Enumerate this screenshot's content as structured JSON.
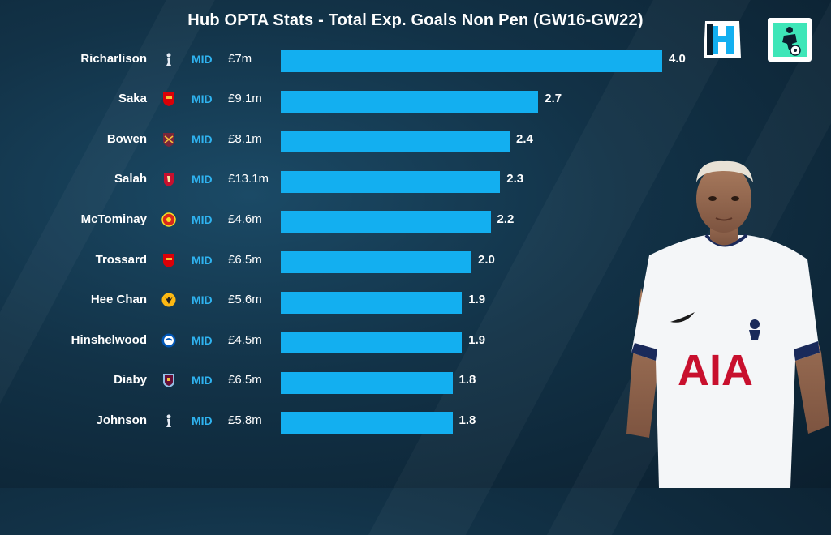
{
  "chart_data": {
    "type": "bar",
    "orientation": "horizontal",
    "title": "Hub OPTA Stats - Total Exp. Goals Non Pen (GW16-GW22)",
    "categories": [
      "Richarlison",
      "Saka",
      "Bowen",
      "Salah",
      "McTominay",
      "Trossard",
      "Hee Chan",
      "Hinshelwood",
      "Diaby",
      "Johnson"
    ],
    "values": [
      4.0,
      2.7,
      2.4,
      2.3,
      2.2,
      2.0,
      1.9,
      1.9,
      1.8,
      1.8
    ],
    "value_labels": [
      "4.0",
      "2.7",
      "2.4",
      "2.3",
      "2.2",
      "2.0",
      "1.9",
      "1.9",
      "1.8",
      "1.8"
    ],
    "positions": [
      "MID",
      "MID",
      "MID",
      "MID",
      "MID",
      "MID",
      "MID",
      "MID",
      "MID",
      "MID"
    ],
    "prices": [
      "£7m",
      "£9.1m",
      "£8.1m",
      "£13.1m",
      "£4.6m",
      "£6.5m",
      "£5.6m",
      "£4.5m",
      "£6.5m",
      "£5.8m"
    ],
    "clubs": [
      "tottenham",
      "arsenal",
      "west-ham",
      "liverpool",
      "man-utd",
      "arsenal",
      "wolves",
      "brighton",
      "aston-villa",
      "tottenham"
    ],
    "xlim": [
      0,
      4.0
    ],
    "grid": false,
    "bar_color": "#13aff0"
  },
  "colors": {
    "position_text": "#2fb3f0",
    "text": "#ffffff"
  },
  "icons": {
    "brand_logo": "hub-logo-icon",
    "secondary_logo": "football-player-logo-icon"
  }
}
